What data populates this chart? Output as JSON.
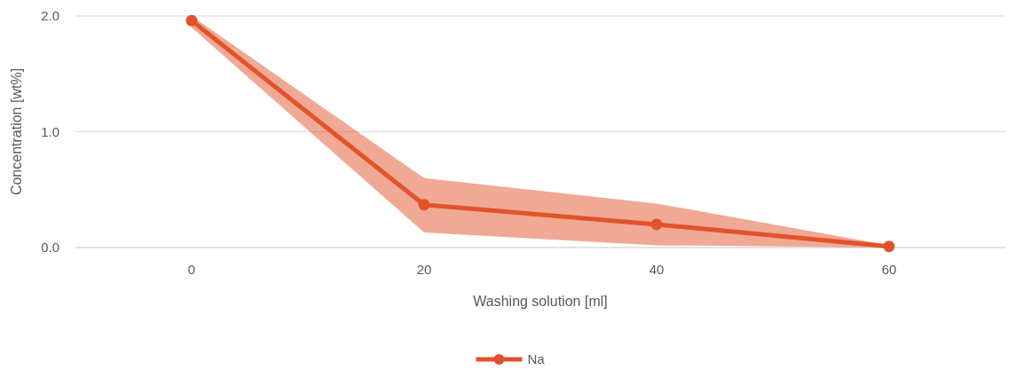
{
  "chart_data": {
    "type": "line",
    "xlabel": "Washing solution [ml]",
    "ylabel": "Concentration [wt%]",
    "categories": [
      "0",
      "20",
      "40",
      "60"
    ],
    "series": [
      {
        "name": "Na",
        "color": "#e2532a",
        "values": [
          1.96,
          0.37,
          0.2,
          0.01
        ],
        "lower": [
          1.9,
          0.13,
          0.02,
          0.0
        ],
        "upper": [
          2.0,
          0.6,
          0.38,
          0.02
        ]
      }
    ],
    "ylim": [
      0,
      2
    ],
    "yticks": [
      {
        "value": 0,
        "label": "0.0"
      },
      {
        "value": 1,
        "label": "1.0"
      },
      {
        "value": 2,
        "label": "2.0"
      }
    ],
    "grid": "y",
    "legend": "bottom",
    "marker": "circle",
    "line_style": "solid"
  }
}
